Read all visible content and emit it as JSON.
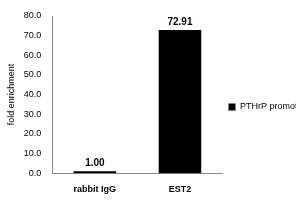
{
  "chart_data": {
    "type": "bar",
    "y_label": "fold enrichment",
    "categories": [
      "rabbit IgG",
      "EST2"
    ],
    "series": [
      {
        "name": "PTHrP promoter",
        "color": "#000000",
        "values": [
          1.0,
          72.91
        ]
      }
    ],
    "value_labels": [
      "1.00",
      "72.91"
    ],
    "data_labels": true,
    "ylim": [
      0,
      80
    ],
    "yticks": [
      {
        "value": 0,
        "label": "0.0"
      },
      {
        "value": 10,
        "label": "10.0"
      },
      {
        "value": 20,
        "label": "20.0"
      },
      {
        "value": 30,
        "label": "30.0"
      },
      {
        "value": 40,
        "label": "40.0"
      },
      {
        "value": 50,
        "label": "50.0"
      },
      {
        "value": 60,
        "label": "60.0"
      },
      {
        "value": 70,
        "label": "70.0"
      },
      {
        "value": 80,
        "label": "80.0"
      }
    ],
    "grid": false,
    "legend": "right"
  }
}
